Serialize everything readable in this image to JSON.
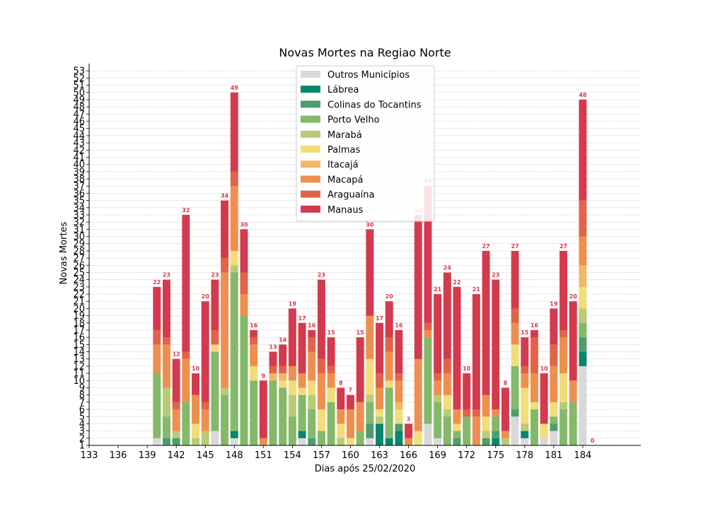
{
  "chart_data": {
    "type": "bar",
    "stacked": true,
    "title": "Novas Mortes na Regiao Norte",
    "xlabel": "Dias após 25/02/2020",
    "ylabel": "Novas Mortes",
    "xlim": [
      133,
      190
    ],
    "ylim": [
      1,
      54
    ],
    "x_ticks": [
      133,
      136,
      139,
      142,
      145,
      148,
      151,
      154,
      157,
      160,
      163,
      166,
      169,
      172,
      175,
      178,
      181,
      184
    ],
    "y_ticks": [
      1,
      2,
      3,
      4,
      5,
      6,
      7,
      8,
      9,
      10,
      11,
      12,
      13,
      14,
      15,
      16,
      17,
      18,
      19,
      20,
      21,
      22,
      23,
      24,
      25,
      26,
      27,
      28,
      29,
      30,
      31,
      32,
      33,
      34,
      35,
      36,
      37,
      38,
      39,
      40,
      41,
      42,
      43,
      44,
      45,
      46,
      47,
      48,
      49,
      50,
      51,
      52,
      53
    ],
    "grid": "y",
    "legend_position": "top-center",
    "x": [
      140,
      141,
      142,
      143,
      144,
      145,
      146,
      147,
      148,
      149,
      150,
      151,
      152,
      153,
      154,
      155,
      156,
      157,
      158,
      159,
      160,
      161,
      162,
      163,
      164,
      165,
      166,
      167,
      168,
      169,
      170,
      171,
      172,
      173,
      174,
      175,
      176,
      177,
      178,
      179,
      180,
      181,
      182,
      183,
      184,
      185
    ],
    "totals": [
      22,
      23,
      12,
      32,
      10,
      20,
      23,
      34,
      49,
      30,
      16,
      9,
      13,
      14,
      19,
      17,
      16,
      23,
      15,
      8,
      7,
      15,
      30,
      17,
      20,
      16,
      3,
      32,
      36,
      21,
      24,
      22,
      10,
      21,
      27,
      23,
      8,
      27,
      15,
      16,
      10,
      19,
      27,
      20,
      48,
      0
    ],
    "series": [
      {
        "name": "Outros Municípios",
        "color": "#d9d9d9",
        "values": [
          1,
          0,
          0,
          0,
          0,
          0,
          2,
          0,
          1,
          0,
          0,
          0,
          0,
          0,
          0,
          1,
          0,
          0,
          0,
          0,
          0,
          0,
          1,
          0,
          0,
          0,
          0,
          0,
          3,
          1,
          0,
          0,
          0,
          0,
          0,
          0,
          0,
          4,
          1,
          0,
          1,
          2,
          0,
          0,
          11,
          0
        ]
      },
      {
        "name": "Lábrea",
        "color": "#04876b",
        "values": [
          0,
          0,
          0,
          0,
          0,
          0,
          0,
          0,
          1,
          0,
          0,
          0,
          0,
          0,
          0,
          1,
          0,
          0,
          0,
          0,
          0,
          0,
          0,
          3,
          1,
          2,
          0,
          0,
          0,
          0,
          0,
          0,
          0,
          0,
          0,
          1,
          0,
          0,
          1,
          0,
          0,
          0,
          0,
          0,
          2,
          0
        ]
      },
      {
        "name": "Colinas do Tocantins",
        "color": "#4e9e6b",
        "values": [
          0,
          1,
          1,
          0,
          0,
          0,
          0,
          0,
          0,
          0,
          0,
          0,
          0,
          0,
          0,
          0,
          1,
          0,
          0,
          0,
          0,
          0,
          2,
          0,
          0,
          1,
          0,
          0,
          0,
          0,
          0,
          1,
          0,
          0,
          1,
          1,
          0,
          1,
          0,
          0,
          0,
          1,
          0,
          0,
          2,
          0
        ]
      },
      {
        "name": "Porto Velho",
        "color": "#83b969",
        "values": [
          9,
          3,
          0,
          6,
          0,
          0,
          11,
          7,
          22,
          18,
          9,
          0,
          9,
          8,
          4,
          5,
          4,
          2,
          6,
          0,
          0,
          2,
          3,
          0,
          7,
          0,
          0,
          0,
          12,
          5,
          4,
          1,
          4,
          0,
          0,
          2,
          0,
          6,
          0,
          5,
          0,
          1,
          5,
          6,
          2,
          0
        ]
      },
      {
        "name": "Marabá",
        "color": "#b8cb75",
        "values": [
          0,
          4,
          1,
          0,
          1,
          2,
          0,
          1,
          1,
          0,
          0,
          0,
          0,
          0,
          3,
          0,
          2,
          0,
          0,
          1,
          0,
          0,
          1,
          1,
          0,
          0,
          0,
          0,
          0,
          1,
          1,
          0,
          0,
          0,
          1,
          0,
          1,
          0,
          1,
          0,
          0,
          0,
          1,
          0,
          2,
          0
        ]
      },
      {
        "name": "Palmas",
        "color": "#f2dd78",
        "values": [
          0,
          0,
          0,
          0,
          2,
          0,
          1,
          0,
          2,
          0,
          2,
          0,
          0,
          1,
          2,
          1,
          2,
          3,
          2,
          2,
          1,
          0,
          5,
          1,
          1,
          2,
          0,
          2,
          0,
          0,
          2,
          1,
          0,
          0,
          2,
          0,
          0,
          3,
          5,
          1,
          2,
          2,
          4,
          0,
          3,
          0
        ]
      },
      {
        "name": "Itacajá",
        "color": "#f2b865",
        "values": [
          0,
          0,
          0,
          0,
          0,
          0,
          0,
          0,
          0,
          0,
          0,
          0,
          1,
          1,
          0,
          0,
          0,
          0,
          0,
          0,
          0,
          0,
          0,
          0,
          0,
          1,
          0,
          0,
          0,
          0,
          0,
          0,
          0,
          0,
          0,
          0,
          0,
          0,
          0,
          0,
          0,
          0,
          0,
          0,
          3,
          0
        ]
      },
      {
        "name": "Macapá",
        "color": "#ef8f4f",
        "values": [
          4,
          6,
          3,
          6,
          4,
          3,
          0,
          16,
          9,
          3,
          3,
          1,
          0,
          0,
          2,
          2,
          4,
          5,
          2,
          2,
          4,
          4,
          6,
          3,
          4,
          3,
          1,
          10,
          1,
          2,
          3,
          2,
          0,
          4,
          3,
          1,
          1,
          3,
          2,
          4,
          0,
          5,
          5,
          3,
          4,
          0
        ]
      },
      {
        "name": "Araguaína",
        "color": "#e1634a",
        "values": [
          2,
          1,
          1,
          1,
          0,
          1,
          2,
          2,
          2,
          3,
          1,
          0,
          1,
          1,
          0,
          0,
          2,
          2,
          1,
          0,
          0,
          0,
          0,
          2,
          2,
          1,
          0,
          0,
          1,
          1,
          2,
          0,
          1,
          1,
          0,
          0,
          0,
          2,
          1,
          5,
          0,
          3,
          1,
          0,
          5,
          0
        ]
      },
      {
        "name": "Manaus",
        "color": "#d43a4d",
        "values": [
          6,
          8,
          6,
          19,
          3,
          14,
          7,
          8,
          11,
          6,
          1,
          8,
          2,
          3,
          8,
          7,
          1,
          11,
          4,
          3,
          2,
          9,
          12,
          7,
          5,
          6,
          2,
          20,
          19,
          11,
          12,
          17,
          5,
          16,
          20,
          18,
          6,
          8,
          4,
          1,
          7,
          5,
          11,
          11,
          14,
          0
        ]
      }
    ]
  }
}
